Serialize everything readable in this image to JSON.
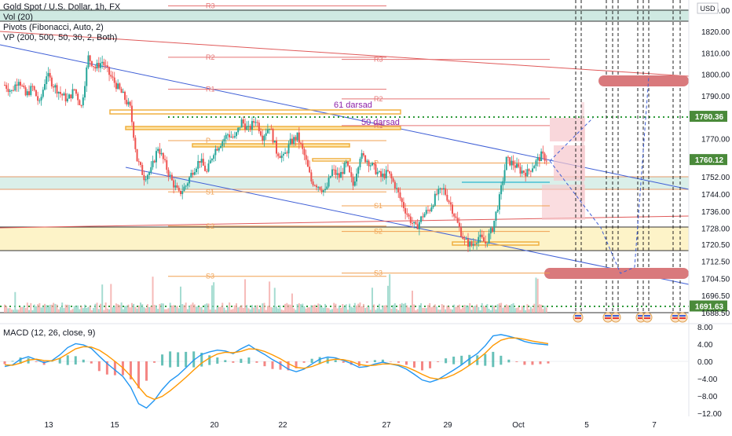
{
  "legend": {
    "symbol": "Gold Spot / U.S. Dollar, 1h, FX",
    "vol": "Vol (20)",
    "pivots": "Pivots (Fibonacci, Auto, 2)",
    "vp": "VP (200, 500, 50, 30, 2, Both)"
  },
  "currency_label": "USD",
  "macd_legend": "MACD (12, 26, close, 9)",
  "annotations": {
    "darsad61": "61 darsad",
    "darsad50": "50 darsad"
  },
  "colors": {
    "channel_line": "#3f5fd6",
    "resistance_line": "#e05a5a",
    "pivot_line": "#f0a050",
    "fib_band_fill": "#cfe9e2",
    "yellow_zone_fill": "#fdf3c8",
    "target_zone": "#d9797c",
    "green_dotted": "#2e9a3a",
    "up_candle": "#26a69a",
    "down_candle": "#ef5350",
    "macd_line": "#2196f3",
    "signal_line": "#ff9800",
    "price_tag": "#4a8a3a"
  },
  "chart_data": [
    {
      "type": "candlestick",
      "title": "Gold Spot / U.S. Dollar, 1h, FX",
      "x_ticks": [
        "13",
        "15",
        "20",
        "22",
        "27",
        "29",
        "Oct",
        "5",
        "7"
      ],
      "y_ticks": [
        "1830.00",
        "1820.00",
        "1810.00",
        "1800.00",
        "1790.00",
        "1780.36",
        "1770.00",
        "1760.12",
        "1752.00",
        "1744.00",
        "1736.00",
        "1728.00",
        "1720.50",
        "1712.50",
        "1704.50",
        "1696.50",
        "1691.63",
        "1688.50"
      ],
      "ylim": [
        1686,
        1836
      ],
      "price_tags": [
        {
          "label": "1780.36",
          "color": "#4a8a3a"
        },
        {
          "label": "1760.12",
          "color": "#4a8a3a"
        },
        {
          "label": "1691.63",
          "color": "#4a8a3a"
        }
      ],
      "pivot_levels": [
        {
          "label": "R3",
          "value": 1832.0
        },
        {
          "label": "R2",
          "value": 1808.0
        },
        {
          "label": "R1",
          "value": 1793.0
        },
        {
          "label": "P",
          "value": 1769.0
        },
        {
          "label": "S1",
          "value": 1745.0
        },
        {
          "label": "S2",
          "value": 1729.0
        },
        {
          "label": "S3",
          "value": 1705.5
        },
        {
          "label": "R3",
          "value": 1807.0
        },
        {
          "label": "R2",
          "value": 1788.5
        },
        {
          "label": "R1",
          "value": 1776.0
        },
        {
          "label": "P",
          "value": 1758.5
        },
        {
          "label": "S1",
          "value": 1738.5
        },
        {
          "label": "S2",
          "value": 1726.5
        },
        {
          "label": "S3",
          "value": 1707.0
        }
      ],
      "close_path": [
        1795,
        1792,
        1798,
        1790,
        1794,
        1786,
        1800,
        1795,
        1791,
        1788,
        1793,
        1785,
        1808,
        1803,
        1806,
        1800,
        1795,
        1790,
        1784,
        1760,
        1752,
        1755,
        1766,
        1758,
        1750,
        1744,
        1748,
        1755,
        1760,
        1754,
        1764,
        1768,
        1772,
        1770,
        1778,
        1774,
        1779,
        1771,
        1776,
        1764,
        1761,
        1768,
        1771,
        1762,
        1750,
        1748,
        1745,
        1755,
        1752,
        1758,
        1748,
        1762,
        1760,
        1756,
        1752,
        1754,
        1748,
        1740,
        1733,
        1728,
        1734,
        1737,
        1744,
        1746,
        1739,
        1730,
        1722,
        1720,
        1724,
        1721,
        1728,
        1742,
        1760,
        1758,
        1755,
        1754,
        1758,
        1762,
        1760
      ]
    },
    {
      "type": "line",
      "title": "MACD (12, 26, close, 9)",
      "y_ticks": [
        "8.00",
        "4.00",
        "0.00",
        "−4.00",
        "−8.00",
        "−12.00"
      ],
      "ylim": [
        -13,
        9.5
      ],
      "series": [
        {
          "values": [
            -1.2,
            -0.8,
            0.5,
            1.1,
            0.4,
            -0.3,
            0.2,
            1.5,
            3.2,
            4.1,
            3.8,
            3.0,
            1.2,
            -0.5,
            -2.0,
            -3.5,
            -6.0,
            -9.8,
            -10.8,
            -9.0,
            -6.5,
            -4.5,
            -3.2,
            -1.5,
            0.3,
            1.6,
            2.2,
            2.6,
            2.4,
            1.8,
            2.9,
            3.8,
            2.6,
            1.6,
            0.4,
            -0.6,
            -1.8,
            -2.4,
            -1.8,
            -0.6,
            0.5,
            1.0,
            0.8,
            0.2,
            -0.5,
            -1.4,
            -1.2,
            -0.6,
            -0.2,
            -0.6,
            -1.0,
            -1.8,
            -3.0,
            -4.3,
            -4.8,
            -4.2,
            -3.1,
            -2.0,
            -0.8,
            0.6,
            1.8,
            3.6,
            5.9,
            6.2,
            5.8,
            5.3,
            4.6,
            4.2,
            4.0,
            3.8
          ]
        },
        {
          "values": [
            -0.8,
            -0.9,
            -0.4,
            0.3,
            0.5,
            0.2,
            0.1,
            0.7,
            1.8,
            2.9,
            3.4,
            3.3,
            2.6,
            1.4,
            0.0,
            -1.5,
            -3.4,
            -5.9,
            -8.0,
            -8.8,
            -8.1,
            -6.8,
            -5.3,
            -3.7,
            -2.0,
            -0.4,
            0.8,
            1.7,
            2.1,
            2.0,
            2.3,
            2.9,
            2.8,
            2.3,
            1.5,
            0.6,
            -0.5,
            -1.4,
            -1.6,
            -1.2,
            -0.5,
            0.2,
            0.5,
            0.4,
            0.0,
            -0.7,
            -1.0,
            -0.9,
            -0.6,
            -0.6,
            -0.8,
            -1.3,
            -2.1,
            -3.0,
            -3.8,
            -4.1,
            -3.8,
            -3.1,
            -2.1,
            -0.9,
            0.4,
            1.9,
            3.7,
            4.9,
            5.4,
            5.4,
            5.1,
            4.7,
            4.4,
            4.1
          ]
        }
      ]
    }
  ]
}
